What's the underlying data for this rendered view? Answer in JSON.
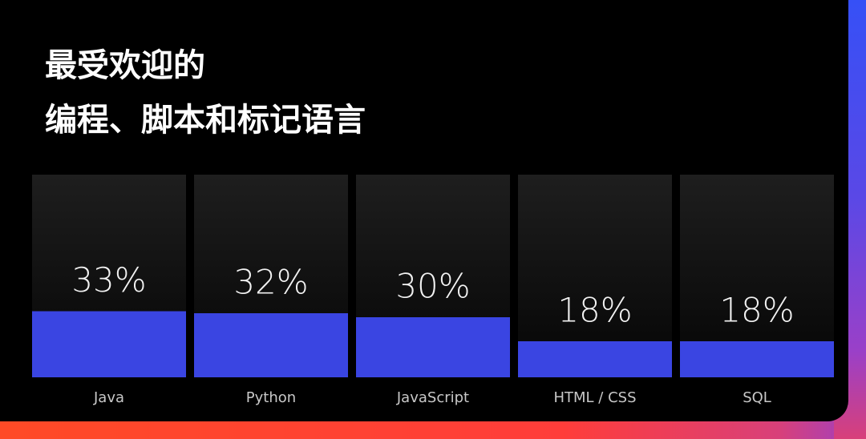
{
  "chart_data": {
    "type": "bar",
    "title": "最受欢迎的",
    "subtitle": "编程、脚本和标记语言",
    "categories": [
      "Java",
      "Python",
      "JavaScript",
      "HTML / CSS",
      "SQL"
    ],
    "values": [
      33,
      32,
      30,
      18,
      18
    ],
    "value_labels": [
      "33%",
      "32%",
      "30%",
      "18%",
      "18%"
    ],
    "color": "#3a45e2",
    "ylim": [
      0,
      100
    ]
  }
}
